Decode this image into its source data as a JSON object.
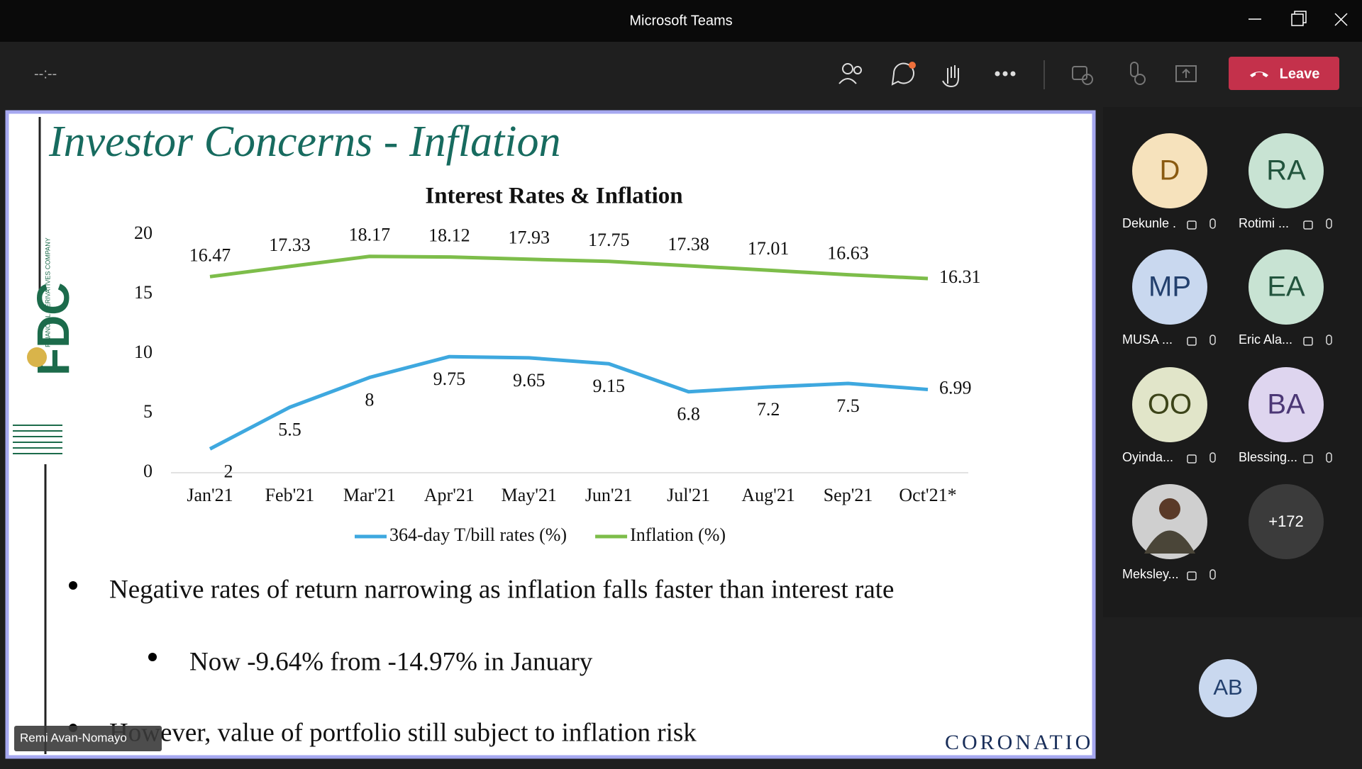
{
  "window_title": "Microsoft Teams",
  "toolbar": {
    "timer": "--:--",
    "leave": "Leave"
  },
  "slide": {
    "title": "Investor Concerns - Inflation",
    "logo": {
      "letters": "FDC",
      "caption": "FINANCIAL DERIVATIVES COMPANY"
    },
    "bullets": [
      "Negative rates of return narrowing as inflation falls faster than interest rate",
      "Now -9.64% from -14.97% in January",
      "However, value of portfolio still subject to inflation risk"
    ],
    "footer_brand": "CORONATION",
    "presenter": "Remi Avan-Nomayo"
  },
  "chart_data": {
    "type": "line",
    "title": "Interest Rates & Inflation",
    "categories": [
      "Jan'21",
      "Feb'21",
      "Mar'21",
      "Apr'21",
      "May'21",
      "Jun'21",
      "Jul'21",
      "Aug'21",
      "Sep'21",
      "Oct'21*"
    ],
    "series": [
      {
        "name": "364-day T/bill rates (%)",
        "color": "#3ea8df",
        "values": [
          2,
          5.5,
          8,
          9.75,
          9.65,
          9.15,
          6.8,
          7.2,
          7.5,
          6.99
        ]
      },
      {
        "name": "Inflation (%)",
        "color": "#7dbd4a",
        "values": [
          16.47,
          17.33,
          18.17,
          18.12,
          17.93,
          17.75,
          17.38,
          17.01,
          16.63,
          16.31
        ]
      }
    ],
    "ylim": [
      0,
      20
    ],
    "yticks": [
      0,
      5,
      10,
      15,
      20
    ],
    "grid": false,
    "legend": "bottom"
  },
  "participants": [
    {
      "initials": "D",
      "name": "Dekunle ."
    },
    {
      "initials": "RA",
      "name": "Rotimi ..."
    },
    {
      "initials": "MP",
      "name": "MUSA ..."
    },
    {
      "initials": "EA",
      "name": "Eric Ala..."
    },
    {
      "initials": "OO",
      "name": "Oyinda..."
    },
    {
      "initials": "BA",
      "name": "Blessing..."
    },
    {
      "name": "Meksley..."
    }
  ],
  "more_count": "+172",
  "self_initials": "AB"
}
